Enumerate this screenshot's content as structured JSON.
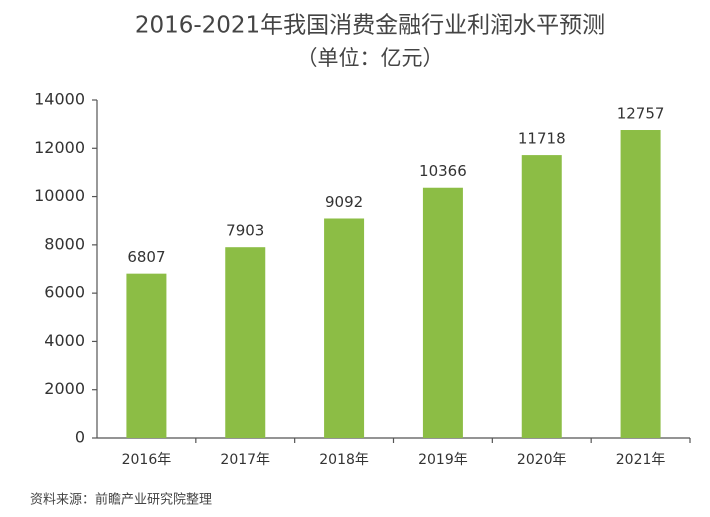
{
  "chart_data": {
    "type": "bar",
    "title": "2016-2021年我国消费金融行业利润水平预测",
    "subtitle": "（单位：亿元）",
    "categories": [
      "2016年",
      "2017年",
      "2018年",
      "2019年",
      "2020年",
      "2021年"
    ],
    "values": [
      6807,
      7903,
      9092,
      10366,
      11718,
      12757
    ],
    "color": "#8cbd45",
    "ylim": [
      0,
      14000
    ],
    "yticks": [
      0,
      2000,
      4000,
      6000,
      8000,
      10000,
      12000,
      14000
    ],
    "source": "资料来源：前瞻产业研究院整理"
  }
}
